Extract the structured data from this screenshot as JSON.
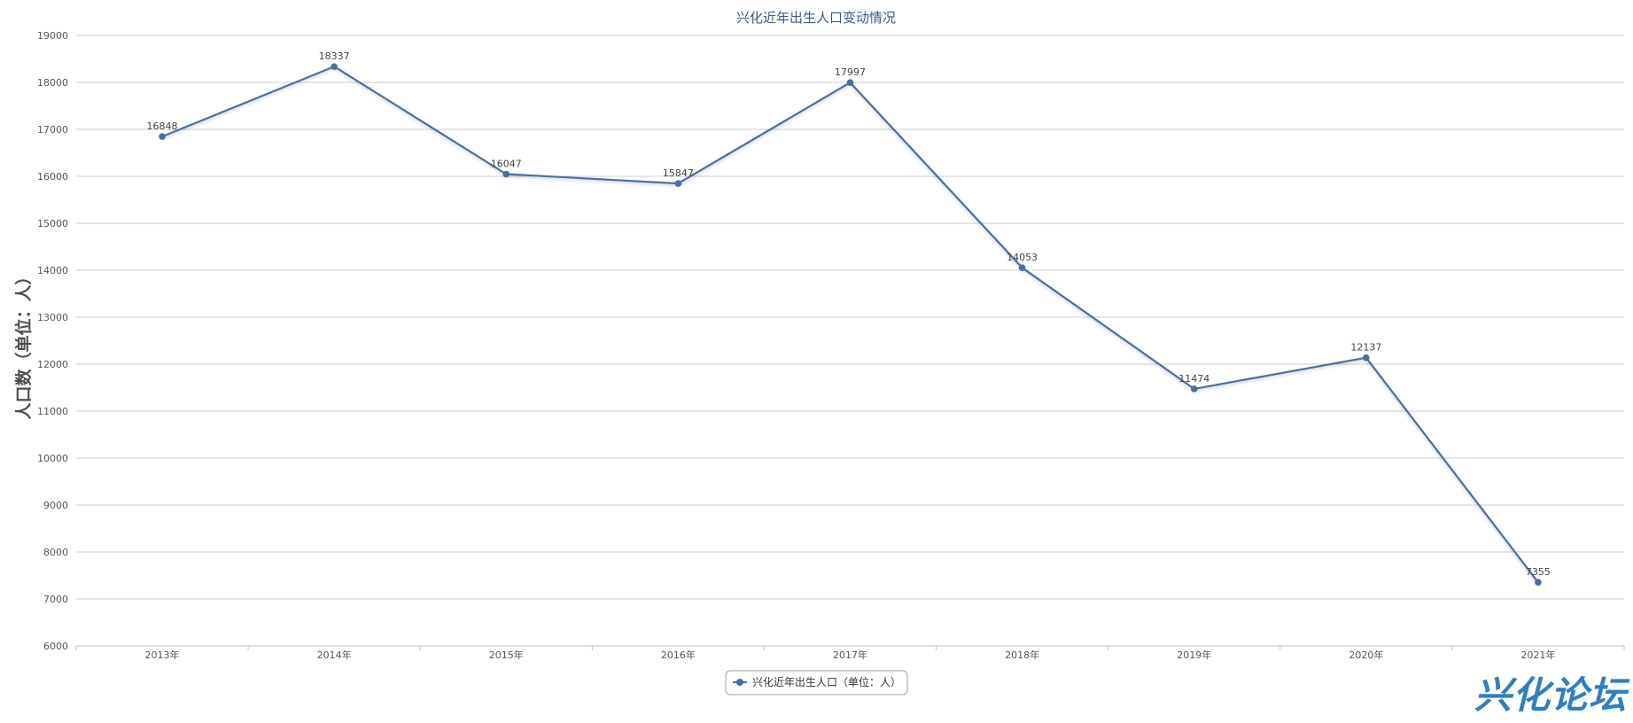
{
  "chart_data": {
    "type": "line",
    "title": "兴化近年出生人口变动情况",
    "ylabel": "人口数（单位：人）",
    "xlabel": "",
    "categories": [
      "2013年",
      "2014年",
      "2015年",
      "2016年",
      "2017年",
      "2018年",
      "2019年",
      "2020年",
      "2021年"
    ],
    "series": [
      {
        "name": "兴化近年出生人口（单位：人）",
        "values": [
          16848,
          18337,
          16047,
          15847,
          17997,
          14053,
          11474,
          12137,
          7355
        ]
      }
    ],
    "ylim": [
      6000,
      19000
    ],
    "yticks": [
      6000,
      7000,
      8000,
      9000,
      10000,
      11000,
      12000,
      13000,
      14000,
      15000,
      16000,
      17000,
      18000,
      19000
    ],
    "grid": true,
    "legend_position": "bottom-center",
    "data_labels": true
  },
  "colors": {
    "series": "#4a6fa0",
    "title": "#3a5a86",
    "watermark": "#2f7fc1"
  },
  "watermark_text": "兴化论坛"
}
